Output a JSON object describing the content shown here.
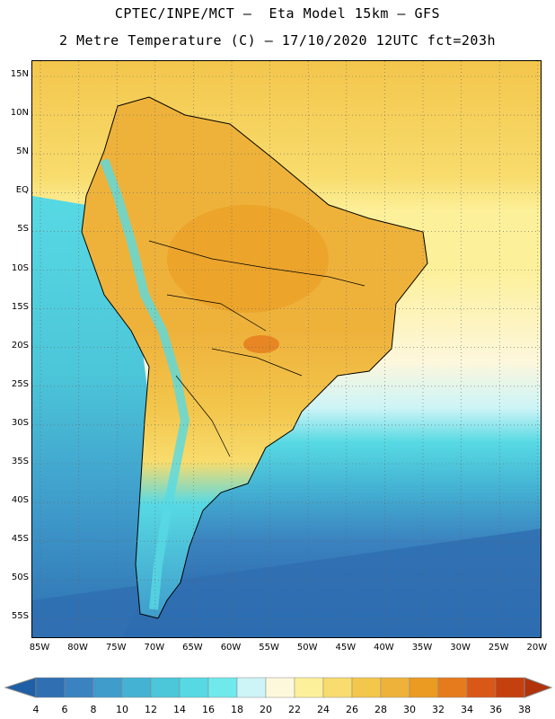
{
  "header": {
    "line1": "CPTEC/INPE/MCT –  Eta Model 15km – GFS",
    "line2": "2 Metre Temperature (C) – 17/10/2020 12UTC fct=203h"
  },
  "chart_data": {
    "type": "heatmap",
    "variable": "2 Metre Temperature",
    "units": "C",
    "lat_labels": [
      "15N",
      "10N",
      "5N",
      "EQ",
      "5S",
      "10S",
      "15S",
      "20S",
      "25S",
      "30S",
      "35S",
      "40S",
      "45S",
      "50S",
      "55S"
    ],
    "lon_labels": [
      "85W",
      "80W",
      "75W",
      "70W",
      "65W",
      "60W",
      "55W",
      "50W",
      "45W",
      "40W",
      "35W",
      "30W",
      "25W",
      "20W"
    ],
    "lat_range": [
      -57.5,
      17.0
    ],
    "lon_range": [
      -86.0,
      -19.5
    ],
    "colorbar": {
      "labels": [
        "4",
        "6",
        "8",
        "10",
        "12",
        "14",
        "16",
        "18",
        "20",
        "22",
        "24",
        "26",
        "28",
        "30",
        "32",
        "34",
        "36",
        "38"
      ],
      "colors": [
        "#1e5fa6",
        "#2f6fb2",
        "#3b83c0",
        "#3f9ccb",
        "#44b2d3",
        "#4cc6d9",
        "#57d9e3",
        "#6fe9ec",
        "#cdf4f7",
        "#fdf7dc",
        "#fdf09a",
        "#f8dc6d",
        "#f3c64c",
        "#eeb23b",
        "#eb9b22",
        "#e57b1d",
        "#d95818",
        "#c5400f",
        "#b0330a"
      ]
    },
    "grid": true
  }
}
